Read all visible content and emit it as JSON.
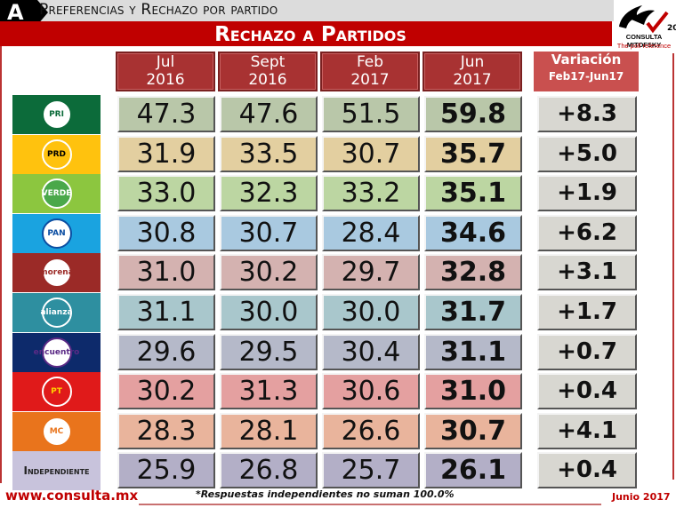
{
  "header": {
    "badge": "A",
    "section_title": "Preferencias y Rechazo por partido",
    "main_title": "Rechazo a Partidos",
    "logo_brand": "CONSULTA MITOFSKY",
    "logo_tag": "The poll reference",
    "logo_years": "20"
  },
  "columns": [
    {
      "l1": "Jul",
      "l2": "2016"
    },
    {
      "l1": "Sept",
      "l2": "2016"
    },
    {
      "l1": "Feb",
      "l2": "2017"
    },
    {
      "l1": "Jun",
      "l2": "2017"
    }
  ],
  "variation_header": {
    "l1": "Variación",
    "l2": "Feb17-Jun17"
  },
  "rows": [
    {
      "party": "PRI",
      "bg": "#0c6b3a",
      "cell": "#b9c7a9",
      "values": [
        "47.3",
        "47.6",
        "51.5",
        "59.8"
      ],
      "variation": "+8.3"
    },
    {
      "party": "PRD",
      "bg": "#ffc20e",
      "cell": "#e3cfa0",
      "values": [
        "31.9",
        "33.5",
        "30.7",
        "35.7"
      ],
      "variation": "+5.0"
    },
    {
      "party": "VERDE",
      "bg": "#8cc63f",
      "cell": "#bcd6a2",
      "values": [
        "33.0",
        "32.3",
        "33.2",
        "35.1"
      ],
      "variation": "+1.9"
    },
    {
      "party": "PAN",
      "bg": "#1aa3e0",
      "cell": "#a9c9e0",
      "values": [
        "30.8",
        "30.7",
        "28.4",
        "34.6"
      ],
      "variation": "+6.2"
    },
    {
      "party": "morena",
      "bg": "#9b2a27",
      "cell": "#d4b2b0",
      "values": [
        "31.0",
        "30.2",
        "29.7",
        "32.8"
      ],
      "variation": "+3.1"
    },
    {
      "party": "alianza",
      "bg": "#2e8fa0",
      "cell": "#a9c7cc",
      "values": [
        "31.1",
        "30.0",
        "30.0",
        "31.7"
      ],
      "variation": "+1.7"
    },
    {
      "party": "encuentro",
      "bg": "#0d2a6b",
      "cell": "#b5b9c9",
      "values": [
        "29.6",
        "29.5",
        "30.4",
        "31.1"
      ],
      "variation": "+0.7"
    },
    {
      "party": "PT",
      "bg": "#e01a1a",
      "cell": "#e4a0a0",
      "values": [
        "30.2",
        "31.3",
        "30.6",
        "31.0"
      ],
      "variation": "+0.4"
    },
    {
      "party": "MC",
      "bg": "#e9741c",
      "cell": "#e9b49c",
      "values": [
        "28.3",
        "28.1",
        "26.6",
        "30.7"
      ],
      "variation": "+4.1"
    },
    {
      "party": "Independiente",
      "bg": "#c8c3dc",
      "cell": "#b3afc7",
      "values": [
        "25.9",
        "26.8",
        "25.7",
        "26.1"
      ],
      "variation": "+0.4"
    }
  ],
  "footer": {
    "url": "www.consulta.mx",
    "note": "*Respuestas independientes no suman 100.0%",
    "date": "Junio 2017"
  },
  "chart_data": {
    "type": "table",
    "title": "Rechazo a Partidos",
    "subtitle": "Preferencias y Rechazo por partido",
    "columns": [
      "Jul 2016",
      "Sept 2016",
      "Feb 2017",
      "Jun 2017",
      "Variación Feb17-Jun17"
    ],
    "series": [
      {
        "name": "PRI",
        "values": [
          47.3,
          47.6,
          51.5,
          59.8
        ],
        "variation": 8.3
      },
      {
        "name": "PRD",
        "values": [
          31.9,
          33.5,
          30.7,
          35.7
        ],
        "variation": 5.0
      },
      {
        "name": "Verde",
        "values": [
          33.0,
          32.3,
          33.2,
          35.1
        ],
        "variation": 1.9
      },
      {
        "name": "PAN",
        "values": [
          30.8,
          30.7,
          28.4,
          34.6
        ],
        "variation": 6.2
      },
      {
        "name": "Morena",
        "values": [
          31.0,
          30.2,
          29.7,
          32.8
        ],
        "variation": 3.1
      },
      {
        "name": "Nueva Alianza",
        "values": [
          31.1,
          30.0,
          30.0,
          31.7
        ],
        "variation": 1.7
      },
      {
        "name": "Encuentro Social",
        "values": [
          29.6,
          29.5,
          30.4,
          31.1
        ],
        "variation": 0.7
      },
      {
        "name": "PT",
        "values": [
          30.2,
          31.3,
          30.6,
          31.0
        ],
        "variation": 0.4
      },
      {
        "name": "Movimiento Ciudadano",
        "values": [
          28.3,
          28.1,
          26.6,
          30.7
        ],
        "variation": 4.1
      },
      {
        "name": "Independiente",
        "values": [
          25.9,
          26.8,
          25.7,
          26.1
        ],
        "variation": 0.4
      }
    ],
    "note": "*Respuestas independientes no suman 100.0%"
  }
}
